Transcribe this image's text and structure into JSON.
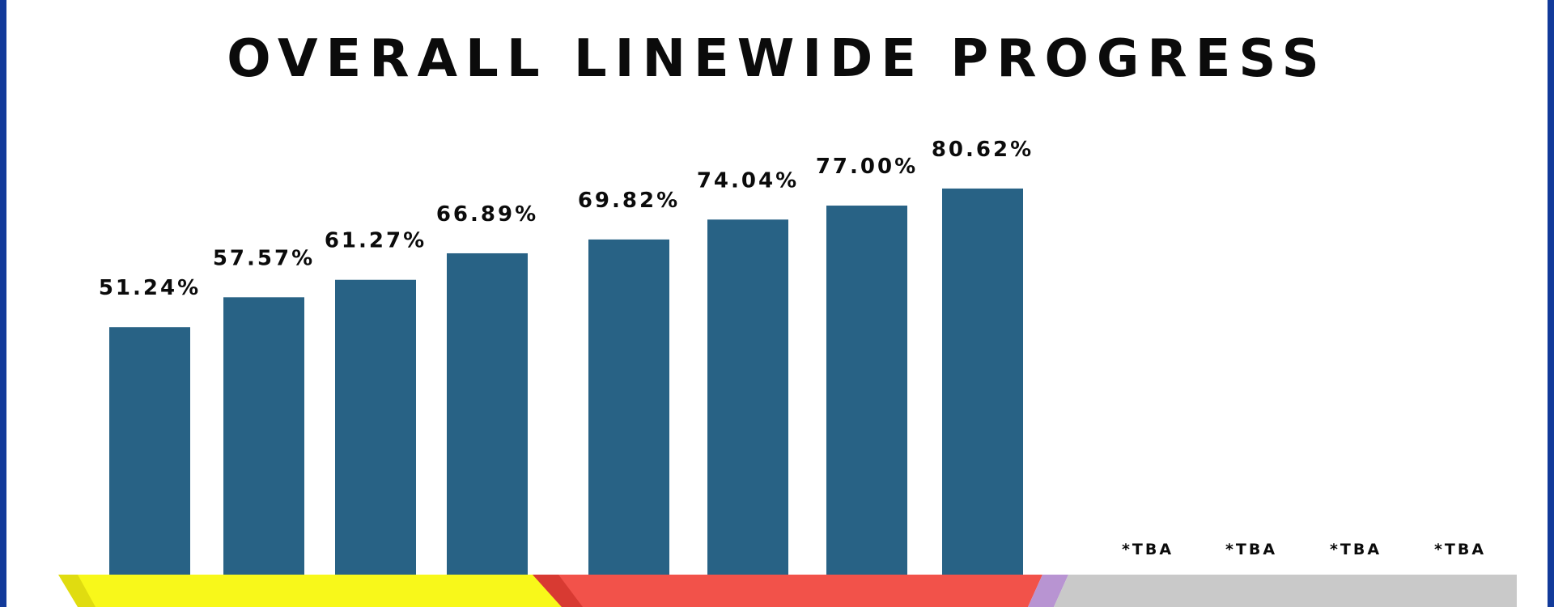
{
  "colors": {
    "frame": "#123a9a",
    "bar": "#286285",
    "band_yellow": "#f8f81a",
    "band_yellow_edge": "#e0dc10",
    "band_red": "#f2524a",
    "band_red_edge": "#d83a32",
    "band_purple": "#b894d2",
    "band_gray": "#c9c9c9"
  },
  "chart_data": {
    "type": "bar",
    "title": "OVERALL LINEWIDE PROGRESS",
    "ylim": [
      0,
      100
    ],
    "grid": false,
    "legend": "none",
    "values": [
      51.24,
      57.57,
      61.27,
      66.89,
      69.82,
      74.04,
      77.0,
      80.62
    ],
    "data_labels": [
      "51.24%",
      "57.57%",
      "61.27%",
      "66.89%",
      "69.82%",
      "74.04%",
      "77.00%",
      "80.62%"
    ],
    "pending_labels": [
      "*TBA",
      "*TBA",
      "*TBA",
      "*TBA"
    ]
  }
}
